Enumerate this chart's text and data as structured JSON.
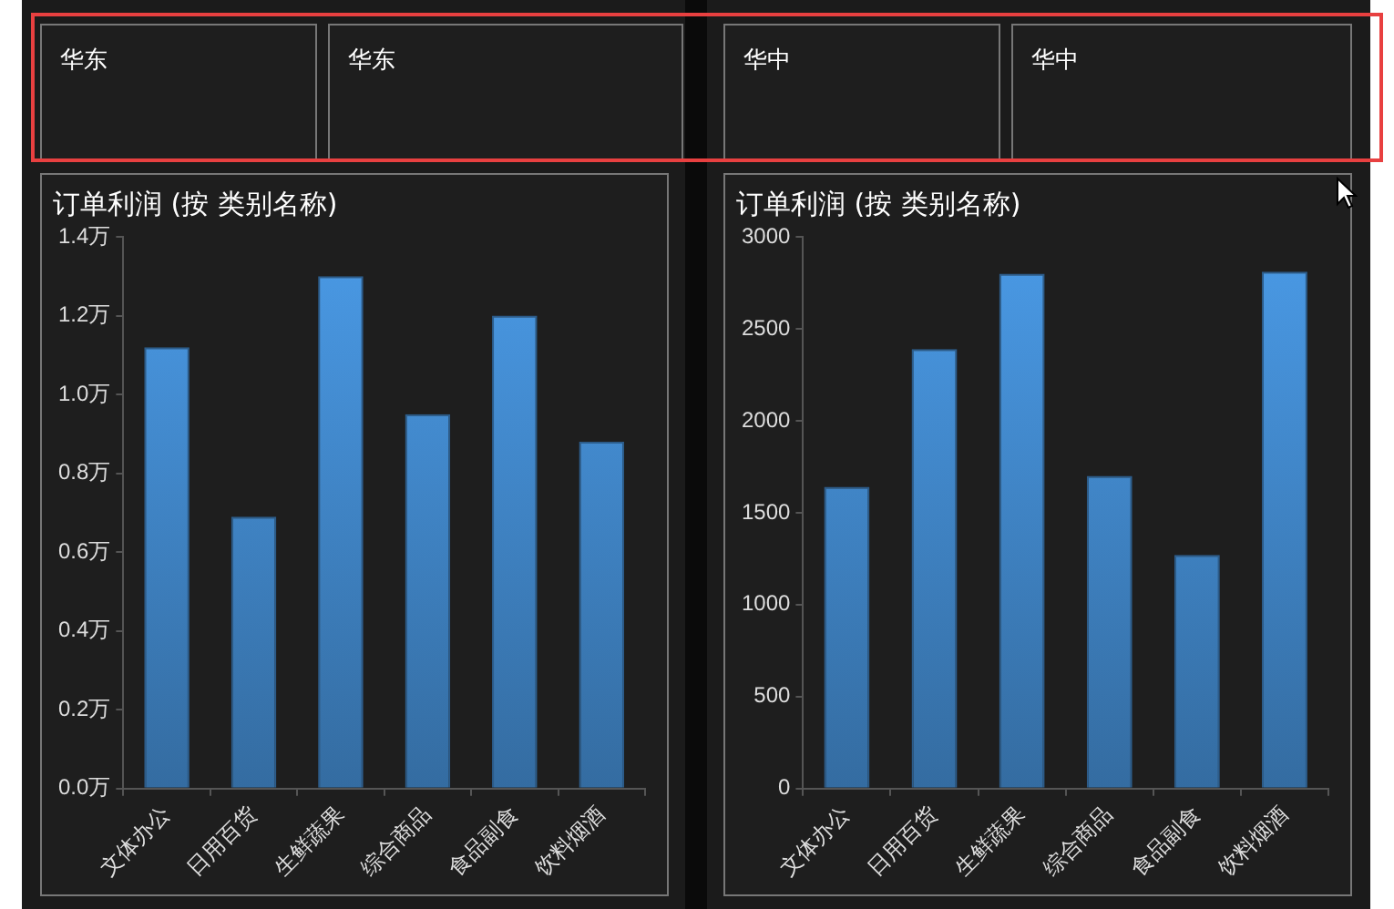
{
  "chart_data": [
    {
      "type": "other",
      "title": "华东"
    },
    {
      "type": "other",
      "title": "华东"
    },
    {
      "type": "other",
      "title": "华中"
    },
    {
      "type": "other",
      "title": "华中"
    },
    {
      "type": "bar",
      "title": "订单利润 (按 类别名称)",
      "categories": [
        "文体办公",
        "日用百货",
        "生鲜蔬果",
        "综合商品",
        "食品副食",
        "饮料烟酒"
      ],
      "values": [
        1.12,
        0.69,
        1.3,
        0.95,
        1.2,
        0.88
      ],
      "color": "#4a9ae6",
      "ylim": [
        0,
        1.4
      ],
      "yticks": [
        {
          "value": 0,
          "label": "0.0万"
        },
        {
          "value": 0.2,
          "label": "0.2万"
        },
        {
          "value": 0.4,
          "label": "0.4万"
        },
        {
          "value": 0.6,
          "label": "0.6万"
        },
        {
          "value": 0.8,
          "label": "0.8万"
        },
        {
          "value": 1.0,
          "label": "1.0万"
        },
        {
          "value": 1.2,
          "label": "1.2万"
        },
        {
          "value": 1.4,
          "label": "1.4万"
        }
      ],
      "grid": false,
      "legend": false
    },
    {
      "type": "bar",
      "title": "订单利润 (按 类别名称)",
      "categories": [
        "文体办公",
        "日用百货",
        "生鲜蔬果",
        "综合商品",
        "食品副食",
        "饮料烟酒"
      ],
      "values": [
        1640,
        2390,
        2800,
        1700,
        1270,
        2810
      ],
      "color": "#4a9ae6",
      "ylim": [
        0,
        3000
      ],
      "yticks": [
        0,
        500,
        1000,
        1500,
        2000,
        2500,
        3000
      ],
      "grid": false,
      "legend": false
    }
  ]
}
